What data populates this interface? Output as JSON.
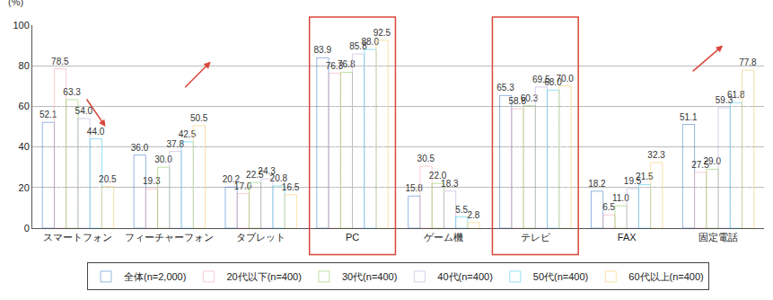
{
  "chart_data": {
    "type": "bar",
    "y_label": "(%)",
    "categories": [
      "スマートフォン",
      "フィーチャーフォン",
      "タブレット",
      "PC",
      "ゲーム機",
      "テレビ",
      "FAX",
      "固定電話"
    ],
    "series": [
      {
        "name": "全体(n=2,000)",
        "color": "#2b6cc4",
        "values": [
          52.1,
          36.0,
          20.2,
          83.9,
          15.8,
          65.3,
          18.2,
          51.1
        ],
        "value_labels": [
          "52.1",
          "36.0",
          "20.2",
          "83.9",
          "15.8",
          "65.3",
          "18.2",
          "51.1"
        ]
      },
      {
        "name": "20代以下(n=400)",
        "color": "#f29ca3",
        "values": [
          78.5,
          19.3,
          17.0,
          76.3,
          30.5,
          58.8,
          6.5,
          27.5
        ],
        "value_labels": [
          "78.5",
          "19.3",
          "17.0",
          "76.3",
          "30.5",
          "58.8",
          "6.5",
          "27.5"
        ]
      },
      {
        "name": "30代(n=400)",
        "color": "#7cc242",
        "values": [
          63.3,
          30.0,
          22.5,
          76.8,
          22.0,
          60.3,
          11.0,
          29.0
        ],
        "value_labels": [
          "63.3",
          "30.0",
          "22.5",
          "76.8",
          "22.0",
          "60.3",
          "11.0",
          "29.0"
        ]
      },
      {
        "name": "40代(n=400)",
        "color": "#b09fd6",
        "values": [
          54.0,
          37.8,
          24.3,
          85.8,
          18.3,
          69.5,
          19.5,
          59.3
        ],
        "value_labels": [
          "54.0",
          "37.8",
          "24.3",
          "85.8",
          "18.3",
          "69.5",
          "19.5",
          "59.3"
        ]
      },
      {
        "name": "50代(n=400)",
        "color": "#2fc0e6",
        "values": [
          44.0,
          42.5,
          20.8,
          88.0,
          5.5,
          68.0,
          21.5,
          61.8
        ],
        "value_labels": [
          "44.0",
          "42.5",
          "20.8",
          "88.0",
          "5.5",
          "68.0",
          "21.5",
          "61.8"
        ]
      },
      {
        "name": "60代以上(n=400)",
        "color": "#f5c453",
        "values": [
          20.5,
          50.5,
          16.5,
          92.5,
          2.8,
          70.0,
          32.3,
          77.8
        ],
        "value_labels": [
          "20.5",
          "50.5",
          "16.5",
          "92.5",
          "2.8",
          "70.0",
          "32.3",
          "77.8"
        ]
      }
    ],
    "ylim": [
      0,
      100
    ],
    "yticks": [
      0,
      20,
      40,
      60,
      80,
      100
    ],
    "grid": true,
    "legend": "bottom",
    "data_labels": true
  }
}
